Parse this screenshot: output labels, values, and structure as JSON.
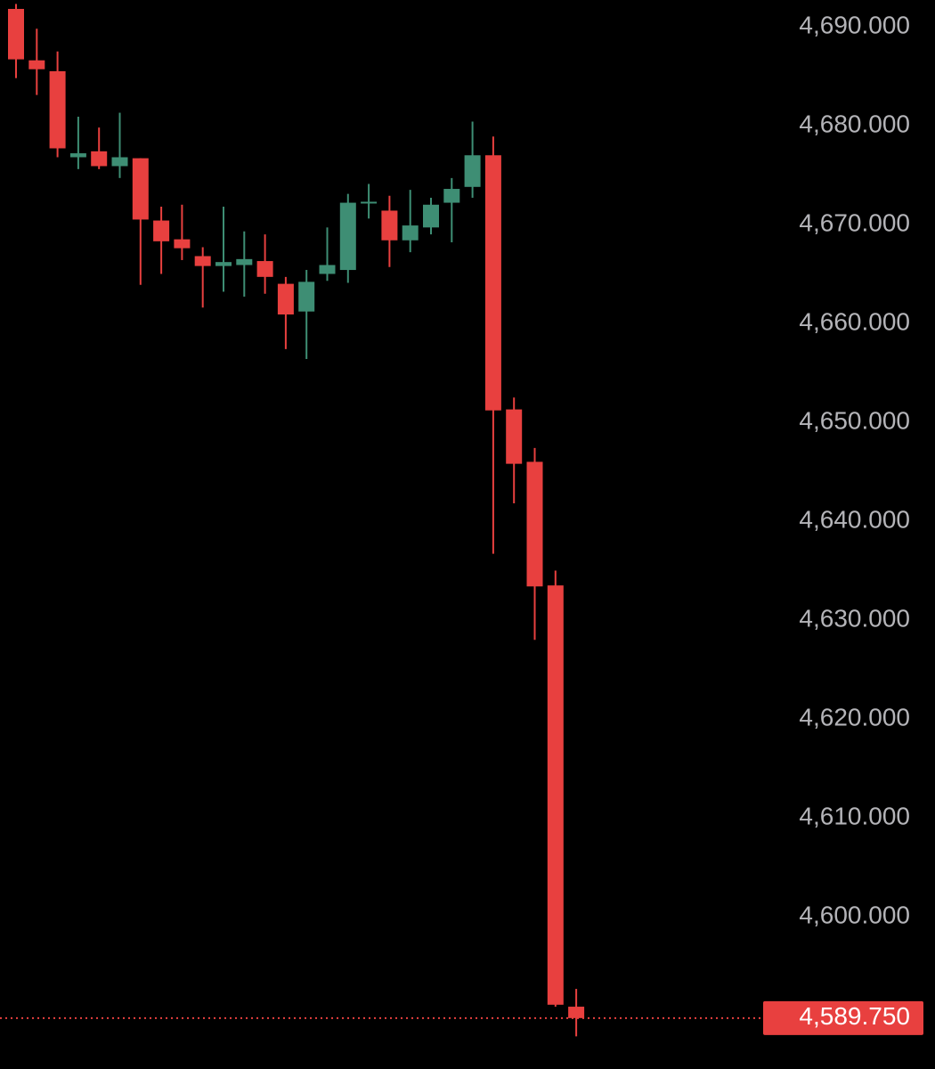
{
  "chart_data": {
    "type": "candlestick",
    "series": [
      {
        "open": [
          4691.8,
          4686.6,
          4685.5,
          4676.8,
          4677.4,
          4675.9,
          4676.7,
          4670.4,
          4668.5,
          4666.8,
          4665.8,
          4665.9,
          4666.3,
          4664.0,
          4661.2,
          4665.0,
          4665.4,
          4672.2,
          4671.4,
          4668.4,
          4669.7,
          4672.2,
          4673.8,
          4677.0,
          4651.3,
          4646.0,
          4633.5,
          4590.9
        ],
        "high": [
          4692.3,
          4689.8,
          4687.5,
          4680.9,
          4679.8,
          4681.3,
          4676.7,
          4671.8,
          4672.0,
          4667.7,
          4671.8,
          4669.3,
          4669.0,
          4664.7,
          4665.4,
          4669.7,
          4673.1,
          4674.1,
          4672.9,
          4673.5,
          4672.7,
          4674.7,
          4680.4,
          4678.9,
          4652.5,
          4647.4,
          4635.0,
          4592.7
        ],
        "low": [
          4684.8,
          4683.1,
          4676.8,
          4675.6,
          4675.6,
          4674.7,
          4663.9,
          4665.0,
          4666.4,
          4661.6,
          4663.2,
          4662.7,
          4663.0,
          4657.4,
          4656.4,
          4664.3,
          4664.1,
          4670.6,
          4665.7,
          4667.2,
          4669.0,
          4668.2,
          4672.7,
          4636.7,
          4641.8,
          4628.0,
          4590.9,
          4587.9
        ],
        "close": [
          4686.7,
          4685.7,
          4677.7,
          4677.2,
          4675.9,
          4676.8,
          4670.5,
          4668.3,
          4667.6,
          4665.8,
          4666.2,
          4666.5,
          4664.7,
          4660.9,
          4664.2,
          4665.9,
          4672.2,
          4672.3,
          4668.4,
          4669.9,
          4672.0,
          4673.6,
          4677.0,
          4651.2,
          4645.8,
          4633.4,
          4591.1,
          4589.75
        ]
      }
    ],
    "up_color": "#3e8e74",
    "down_color": "#e8403f",
    "ylim": [
      4584.6,
      4692.7
    ],
    "yticks": [
      {
        "value": 4690,
        "label": "4,690.000"
      },
      {
        "value": 4680,
        "label": "4,680.000"
      },
      {
        "value": 4670,
        "label": "4,670.000"
      },
      {
        "value": 4660,
        "label": "4,660.000"
      },
      {
        "value": 4650,
        "label": "4,650.000"
      },
      {
        "value": 4640,
        "label": "4,640.000"
      },
      {
        "value": 4630,
        "label": "4,630.000"
      },
      {
        "value": 4620,
        "label": "4,620.000"
      },
      {
        "value": 4610,
        "label": "4,610.000"
      },
      {
        "value": 4600,
        "label": "4,600.000"
      }
    ],
    "last_price": {
      "value": 4589.75,
      "label": "4,589.750"
    }
  }
}
